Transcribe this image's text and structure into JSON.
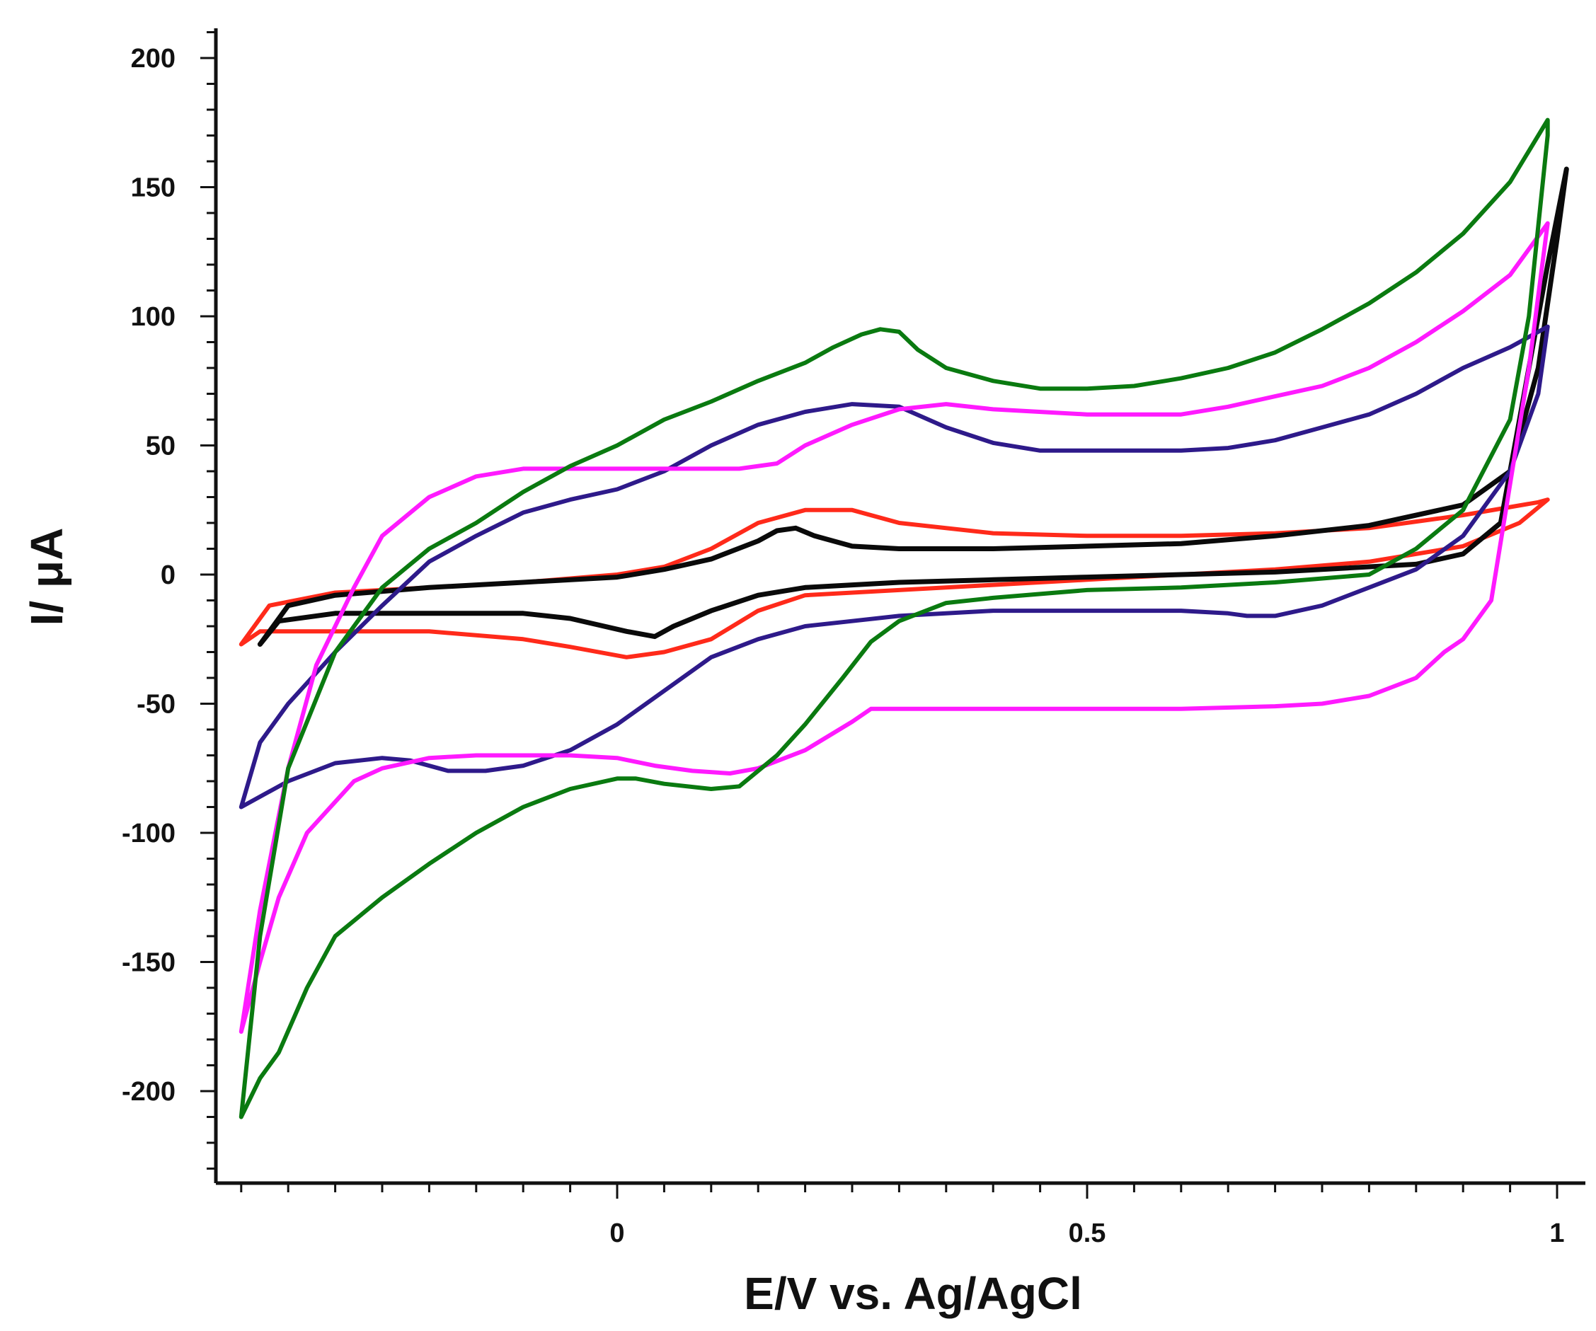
{
  "chart_data": {
    "type": "line",
    "title": "",
    "xlabel": "E/V vs. Ag/AgCl",
    "ylabel": "I/ μA",
    "xlim": [
      -0.4,
      1.0
    ],
    "ylim": [
      -235,
      210
    ],
    "xticks": [
      {
        "value": 0,
        "label": "0"
      },
      {
        "value": 0.5,
        "label": "0.5"
      },
      {
        "value": 1,
        "label": "1"
      }
    ],
    "yticks": [
      {
        "value": 200,
        "label": "200"
      },
      {
        "value": 150,
        "label": "150"
      },
      {
        "value": 100,
        "label": "100"
      },
      {
        "value": 50,
        "label": "50"
      },
      {
        "value": 0,
        "label": "0"
      },
      {
        "value": -50,
        "label": "-50"
      },
      {
        "value": -100,
        "label": "-100"
      },
      {
        "value": -150,
        "label": "-150"
      },
      {
        "value": -200,
        "label": "-200"
      }
    ],
    "series": [
      {
        "name": "red",
        "color": "#ff2a1a",
        "x": [
          -0.4,
          -0.37,
          -0.3,
          -0.2,
          -0.1,
          0,
          0.05,
          0.1,
          0.15,
          0.2,
          0.25,
          0.3,
          0.4,
          0.5,
          0.6,
          0.7,
          0.8,
          0.9,
          0.98,
          0.99,
          0.96,
          0.9,
          0.8,
          0.7,
          0.6,
          0.5,
          0.4,
          0.3,
          0.2,
          0.15,
          0.1,
          0.05,
          0.01,
          -0.05,
          -0.1,
          -0.2,
          -0.3,
          -0.38,
          -0.4
        ],
        "y": [
          -27,
          -12,
          -7,
          -5,
          -3,
          0,
          3,
          10,
          20,
          25,
          25,
          20,
          16,
          15,
          15,
          16,
          18,
          23,
          28,
          29,
          20,
          11,
          5,
          2,
          0,
          -2,
          -4,
          -6,
          -8,
          -14,
          -25,
          -30,
          -32,
          -28,
          -25,
          -22,
          -22,
          -22,
          -27
        ]
      },
      {
        "name": "black",
        "color": "#0a0a0a",
        "x": [
          -0.38,
          -0.35,
          -0.3,
          -0.2,
          -0.1,
          0,
          0.05,
          0.1,
          0.15,
          0.17,
          0.19,
          0.21,
          0.25,
          0.3,
          0.4,
          0.5,
          0.6,
          0.7,
          0.8,
          0.9,
          0.95,
          0.98,
          1.0,
          1.01,
          0.99,
          0.96,
          0.94,
          0.9,
          0.85,
          0.8,
          0.7,
          0.6,
          0.5,
          0.4,
          0.3,
          0.2,
          0.15,
          0.1,
          0.06,
          0.04,
          0.01,
          -0.05,
          -0.1,
          -0.2,
          -0.3,
          -0.36,
          -0.38
        ],
        "y": [
          -27,
          -12,
          -8,
          -5,
          -3,
          -1,
          2,
          6,
          13,
          17,
          18,
          15,
          11,
          10,
          10,
          11,
          12,
          15,
          19,
          27,
          40,
          80,
          130,
          157,
          120,
          60,
          20,
          8,
          4,
          3,
          1,
          0,
          -1,
          -2,
          -3,
          -5,
          -8,
          -14,
          -20,
          -24,
          -22,
          -17,
          -15,
          -15,
          -15,
          -18,
          -27
        ]
      },
      {
        "name": "navy",
        "color": "#2e1a8a",
        "x": [
          -0.4,
          -0.38,
          -0.35,
          -0.3,
          -0.25,
          -0.2,
          -0.15,
          -0.1,
          -0.05,
          0,
          0.05,
          0.1,
          0.15,
          0.2,
          0.25,
          0.3,
          0.35,
          0.4,
          0.45,
          0.5,
          0.6,
          0.65,
          0.7,
          0.75,
          0.8,
          0.85,
          0.9,
          0.95,
          0.99,
          0.98,
          0.95,
          0.9,
          0.85,
          0.8,
          0.75,
          0.7,
          0.67,
          0.65,
          0.6,
          0.5,
          0.4,
          0.3,
          0.25,
          0.2,
          0.15,
          0.1,
          0.05,
          0,
          -0.05,
          -0.1,
          -0.14,
          -0.18,
          -0.22,
          -0.25,
          -0.3,
          -0.35,
          -0.4
        ],
        "y": [
          -90,
          -65,
          -50,
          -30,
          -12,
          5,
          15,
          24,
          29,
          33,
          40,
          50,
          58,
          63,
          66,
          65,
          57,
          51,
          48,
          48,
          48,
          49,
          52,
          57,
          62,
          70,
          80,
          88,
          96,
          70,
          40,
          15,
          2,
          -5,
          -12,
          -16,
          -16,
          -15,
          -14,
          -14,
          -14,
          -16,
          -18,
          -20,
          -25,
          -32,
          -45,
          -58,
          -68,
          -74,
          -76,
          -76,
          -72,
          -71,
          -73,
          -80,
          -90
        ]
      },
      {
        "name": "magenta",
        "color": "#ff1aff",
        "x": [
          -0.4,
          -0.38,
          -0.35,
          -0.32,
          -0.28,
          -0.25,
          -0.2,
          -0.15,
          -0.1,
          -0.05,
          0,
          0.05,
          0.1,
          0.13,
          0.17,
          0.2,
          0.25,
          0.3,
          0.35,
          0.4,
          0.5,
          0.6,
          0.65,
          0.7,
          0.75,
          0.8,
          0.85,
          0.9,
          0.95,
          0.99,
          0.97,
          0.93,
          0.9,
          0.88,
          0.85,
          0.8,
          0.75,
          0.7,
          0.6,
          0.5,
          0.4,
          0.3,
          0.27,
          0.25,
          0.2,
          0.15,
          0.12,
          0.08,
          0.04,
          0,
          -0.05,
          -0.1,
          -0.15,
          -0.2,
          -0.25,
          -0.28,
          -0.3,
          -0.33,
          -0.36,
          -0.38,
          -0.4
        ],
        "y": [
          -177,
          -130,
          -75,
          -35,
          -5,
          15,
          30,
          38,
          41,
          41,
          41,
          41,
          41,
          41,
          43,
          50,
          58,
          64,
          66,
          64,
          62,
          62,
          65,
          69,
          73,
          80,
          90,
          102,
          116,
          136,
          80,
          -10,
          -25,
          -30,
          -40,
          -47,
          -50,
          -51,
          -52,
          -52,
          -52,
          -52,
          -52,
          -57,
          -68,
          -75,
          -77,
          -76,
          -74,
          -71,
          -70,
          -70,
          -70,
          -71,
          -75,
          -80,
          -88,
          -100,
          -125,
          -150,
          -177
        ]
      },
      {
        "name": "green",
        "color": "#0a7a10",
        "x": [
          -0.4,
          -0.38,
          -0.35,
          -0.3,
          -0.25,
          -0.2,
          -0.15,
          -0.1,
          -0.05,
          0,
          0.05,
          0.1,
          0.15,
          0.2,
          0.23,
          0.26,
          0.28,
          0.3,
          0.32,
          0.35,
          0.4,
          0.45,
          0.5,
          0.55,
          0.6,
          0.65,
          0.7,
          0.75,
          0.8,
          0.85,
          0.9,
          0.95,
          0.99,
          0.99,
          0.97,
          0.95,
          0.9,
          0.85,
          0.8,
          0.7,
          0.6,
          0.5,
          0.4,
          0.35,
          0.3,
          0.27,
          0.24,
          0.2,
          0.17,
          0.13,
          0.1,
          0.05,
          0.02,
          0,
          -0.05,
          -0.1,
          -0.15,
          -0.2,
          -0.25,
          -0.3,
          -0.33,
          -0.36,
          -0.38,
          -0.4
        ],
        "y": [
          -210,
          -140,
          -75,
          -30,
          -5,
          10,
          20,
          32,
          42,
          50,
          60,
          67,
          75,
          82,
          88,
          93,
          95,
          94,
          87,
          80,
          75,
          72,
          72,
          73,
          76,
          80,
          86,
          95,
          105,
          117,
          132,
          152,
          176,
          170,
          100,
          60,
          25,
          10,
          0,
          -3,
          -5,
          -6,
          -9,
          -11,
          -18,
          -26,
          -40,
          -58,
          -70,
          -82,
          -83,
          -81,
          -79,
          -79,
          -83,
          -90,
          -100,
          -112,
          -125,
          -140,
          -160,
          -185,
          -195,
          -210
        ]
      }
    ]
  }
}
